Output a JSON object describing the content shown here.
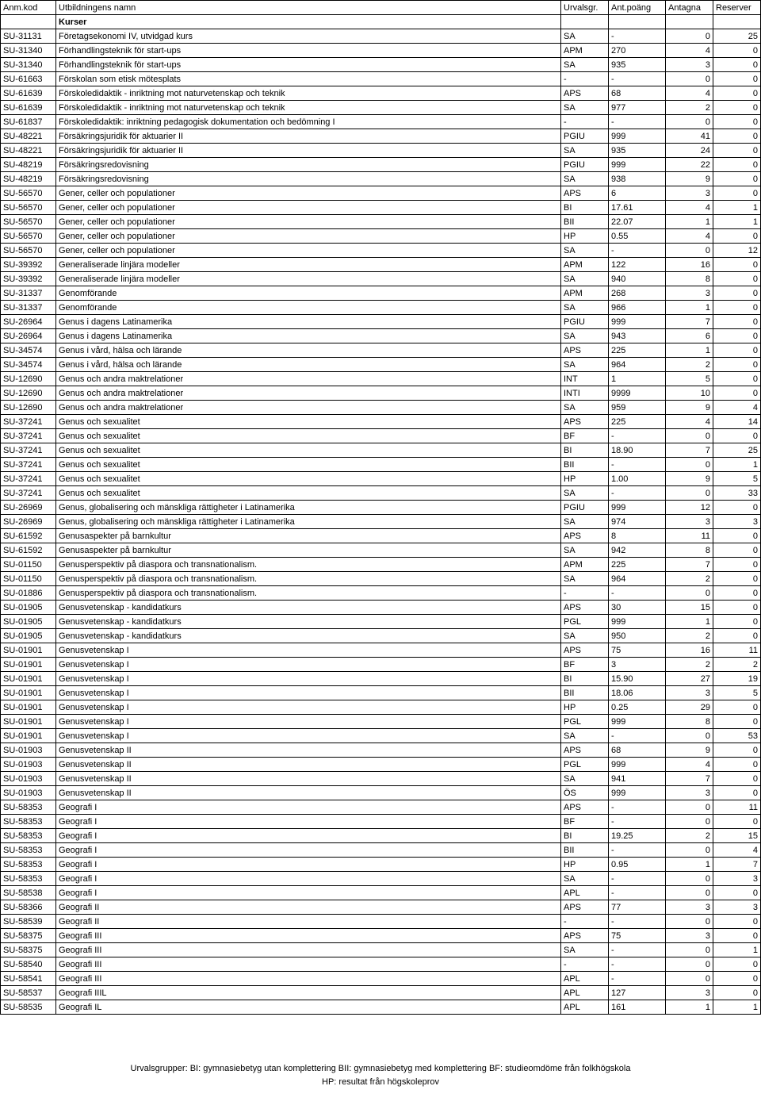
{
  "header": {
    "code": "Anm.kod",
    "name": "Utbildningens namn",
    "urval": "Urvalsgr.",
    "poang": "Ant.poäng",
    "antagna": "Antagna",
    "reserver": "Reserver"
  },
  "section_label": "Kurser",
  "rows": [
    [
      "SU-31131",
      "Företagsekonomi IV, utvidgad kurs",
      "SA",
      "-",
      "0",
      "25"
    ],
    [
      "SU-31340",
      "Förhandlingsteknik för start-ups",
      "APM",
      "270",
      "4",
      "0"
    ],
    [
      "SU-31340",
      "Förhandlingsteknik för start-ups",
      "SA",
      "935",
      "3",
      "0"
    ],
    [
      "SU-61663",
      "Förskolan som etisk mötesplats",
      "-",
      "-",
      "0",
      "0"
    ],
    [
      "SU-61639",
      "Förskoledidaktik - inriktning mot naturvetenskap och teknik",
      "APS",
      "68",
      "4",
      "0"
    ],
    [
      "SU-61639",
      "Förskoledidaktik - inriktning mot naturvetenskap och teknik",
      "SA",
      "977",
      "2",
      "0"
    ],
    [
      "SU-61837",
      "Förskoledidaktik: inriktning pedagogisk dokumentation och bedömning I",
      "-",
      "-",
      "0",
      "0"
    ],
    [
      "SU-48221",
      "Försäkringsjuridik för aktuarier II",
      "PGIU",
      "999",
      "41",
      "0"
    ],
    [
      "SU-48221",
      "Försäkringsjuridik för aktuarier II",
      "SA",
      "935",
      "24",
      "0"
    ],
    [
      "SU-48219",
      "Försäkringsredovisning",
      "PGIU",
      "999",
      "22",
      "0"
    ],
    [
      "SU-48219",
      "Försäkringsredovisning",
      "SA",
      "938",
      "9",
      "0"
    ],
    [
      "SU-56570",
      "Gener, celler och populationer",
      "APS",
      "6",
      "3",
      "0"
    ],
    [
      "SU-56570",
      "Gener, celler och populationer",
      "BI",
      "17.61",
      "4",
      "1"
    ],
    [
      "SU-56570",
      "Gener, celler och populationer",
      "BII",
      "22.07",
      "1",
      "1"
    ],
    [
      "SU-56570",
      "Gener, celler och populationer",
      "HP",
      "0.55",
      "4",
      "0"
    ],
    [
      "SU-56570",
      "Gener, celler och populationer",
      "SA",
      "-",
      "0",
      "12"
    ],
    [
      "SU-39392",
      "Generaliserade linjära modeller",
      "APM",
      "122",
      "16",
      "0"
    ],
    [
      "SU-39392",
      "Generaliserade linjära modeller",
      "SA",
      "940",
      "8",
      "0"
    ],
    [
      "SU-31337",
      "Genomförande",
      "APM",
      "268",
      "3",
      "0"
    ],
    [
      "SU-31337",
      "Genomförande",
      "SA",
      "966",
      "1",
      "0"
    ],
    [
      "SU-26964",
      "Genus i dagens Latinamerika",
      "PGIU",
      "999",
      "7",
      "0"
    ],
    [
      "SU-26964",
      "Genus i dagens Latinamerika",
      "SA",
      "943",
      "6",
      "0"
    ],
    [
      "SU-34574",
      "Genus i vård, hälsa och lärande",
      "APS",
      "225",
      "1",
      "0"
    ],
    [
      "SU-34574",
      "Genus i vård, hälsa och lärande",
      "SA",
      "964",
      "2",
      "0"
    ],
    [
      "SU-12690",
      "Genus och andra maktrelationer",
      "INT",
      "1",
      "5",
      "0"
    ],
    [
      "SU-12690",
      "Genus och andra maktrelationer",
      "INTI",
      "9999",
      "10",
      "0"
    ],
    [
      "SU-12690",
      "Genus och andra maktrelationer",
      "SA",
      "959",
      "9",
      "4"
    ],
    [
      "SU-37241",
      "Genus och sexualitet",
      "APS",
      "225",
      "4",
      "14"
    ],
    [
      "SU-37241",
      "Genus och sexualitet",
      "BF",
      "-",
      "0",
      "0"
    ],
    [
      "SU-37241",
      "Genus och sexualitet",
      "BI",
      "18.90",
      "7",
      "25"
    ],
    [
      "SU-37241",
      "Genus och sexualitet",
      "BII",
      "-",
      "0",
      "1"
    ],
    [
      "SU-37241",
      "Genus och sexualitet",
      "HP",
      "1.00",
      "9",
      "5"
    ],
    [
      "SU-37241",
      "Genus och sexualitet",
      "SA",
      "-",
      "0",
      "33"
    ],
    [
      "SU-26969",
      "Genus, globalisering och mänskliga rättigheter i Latinamerika",
      "PGIU",
      "999",
      "12",
      "0"
    ],
    [
      "SU-26969",
      "Genus, globalisering och mänskliga rättigheter i Latinamerika",
      "SA",
      "974",
      "3",
      "3"
    ],
    [
      "SU-61592",
      "Genusaspekter på barnkultur",
      "APS",
      "8",
      "11",
      "0"
    ],
    [
      "SU-61592",
      "Genusaspekter på barnkultur",
      "SA",
      "942",
      "8",
      "0"
    ],
    [
      "SU-01150",
      "Genusperspektiv på diaspora och transnationalism.",
      "APM",
      "225",
      "7",
      "0"
    ],
    [
      "SU-01150",
      "Genusperspektiv på diaspora och transnationalism.",
      "SA",
      "964",
      "2",
      "0"
    ],
    [
      "SU-01886",
      "Genusperspektiv på diaspora och transnationalism.",
      "-",
      "-",
      "0",
      "0"
    ],
    [
      "SU-01905",
      "Genusvetenskap - kandidatkurs",
      "APS",
      "30",
      "15",
      "0"
    ],
    [
      "SU-01905",
      "Genusvetenskap - kandidatkurs",
      "PGL",
      "999",
      "1",
      "0"
    ],
    [
      "SU-01905",
      "Genusvetenskap - kandidatkurs",
      "SA",
      "950",
      "2",
      "0"
    ],
    [
      "SU-01901",
      "Genusvetenskap I",
      "APS",
      "75",
      "16",
      "11"
    ],
    [
      "SU-01901",
      "Genusvetenskap I",
      "BF",
      "3",
      "2",
      "2"
    ],
    [
      "SU-01901",
      "Genusvetenskap I",
      "BI",
      "15.90",
      "27",
      "19"
    ],
    [
      "SU-01901",
      "Genusvetenskap I",
      "BII",
      "18.06",
      "3",
      "5"
    ],
    [
      "SU-01901",
      "Genusvetenskap I",
      "HP",
      "0.25",
      "29",
      "0"
    ],
    [
      "SU-01901",
      "Genusvetenskap I",
      "PGL",
      "999",
      "8",
      "0"
    ],
    [
      "SU-01901",
      "Genusvetenskap I",
      "SA",
      "-",
      "0",
      "53"
    ],
    [
      "SU-01903",
      "Genusvetenskap II",
      "APS",
      "68",
      "9",
      "0"
    ],
    [
      "SU-01903",
      "Genusvetenskap II",
      "PGL",
      "999",
      "4",
      "0"
    ],
    [
      "SU-01903",
      "Genusvetenskap II",
      "SA",
      "941",
      "7",
      "0"
    ],
    [
      "SU-01903",
      "Genusvetenskap II",
      "ÖS",
      "999",
      "3",
      "0"
    ],
    [
      "SU-58353",
      "Geografi I",
      "APS",
      "-",
      "0",
      "11"
    ],
    [
      "SU-58353",
      "Geografi I",
      "BF",
      "-",
      "0",
      "0"
    ],
    [
      "SU-58353",
      "Geografi I",
      "BI",
      "19.25",
      "2",
      "15"
    ],
    [
      "SU-58353",
      "Geografi I",
      "BII",
      "-",
      "0",
      "4"
    ],
    [
      "SU-58353",
      "Geografi I",
      "HP",
      "0.95",
      "1",
      "7"
    ],
    [
      "SU-58353",
      "Geografi I",
      "SA",
      "-",
      "0",
      "3"
    ],
    [
      "SU-58538",
      "Geografi I",
      "APL",
      "-",
      "0",
      "0"
    ],
    [
      "SU-58366",
      "Geografi II",
      "APS",
      "77",
      "3",
      "3"
    ],
    [
      "SU-58539",
      "Geografi II",
      "-",
      "-",
      "0",
      "0"
    ],
    [
      "SU-58375",
      "Geografi III",
      "APS",
      "75",
      "3",
      "0"
    ],
    [
      "SU-58375",
      "Geografi III",
      "SA",
      "-",
      "0",
      "1"
    ],
    [
      "SU-58540",
      "Geografi III",
      "-",
      "-",
      "0",
      "0"
    ],
    [
      "SU-58541",
      "Geografi III",
      "APL",
      "-",
      "0",
      "0"
    ],
    [
      "SU-58537",
      "Geografi IIIL",
      "APL",
      "127",
      "3",
      "0"
    ],
    [
      "SU-58535",
      "Geografi IL",
      "APL",
      "161",
      "1",
      "1"
    ]
  ],
  "footer": {
    "line1": "Urvalsgrupper:  BI: gymnasiebetyg utan komplettering   BII: gymnasiebetyg med komplettering   BF: studieomdöme från folkhögskola",
    "line2": "HP: resultat från högskoleprov"
  }
}
